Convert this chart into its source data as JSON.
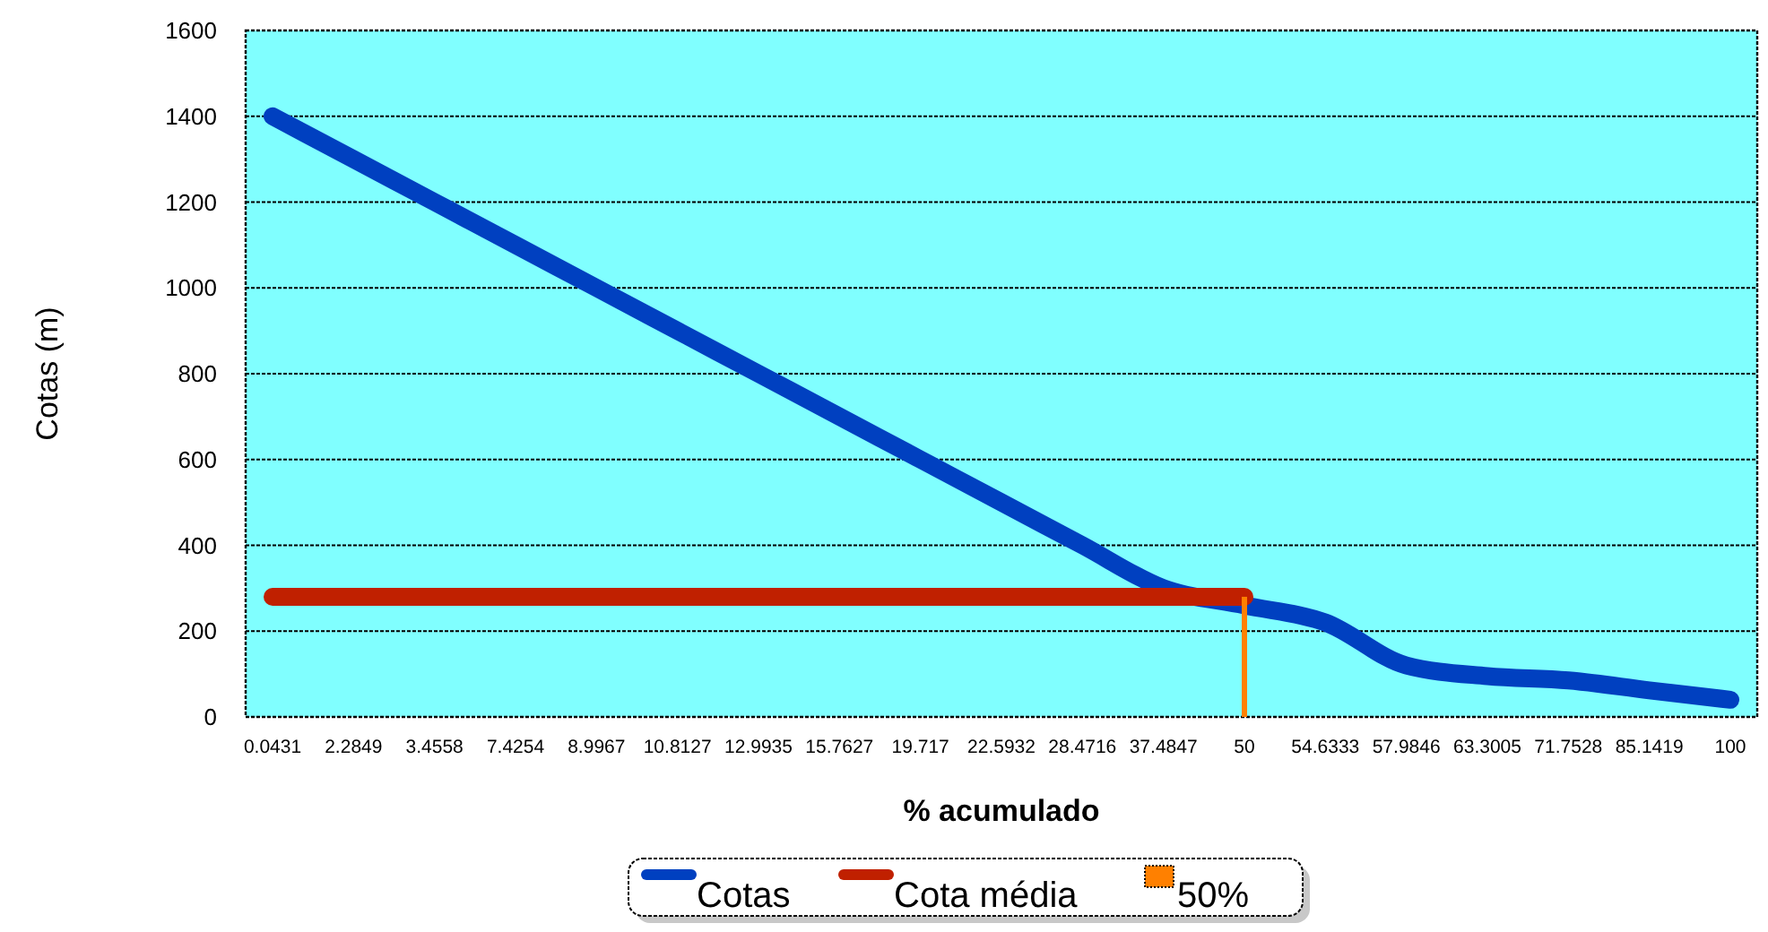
{
  "chart_data": {
    "type": "line",
    "xlabel": "% acumulado",
    "ylabel": "Cotas (m)",
    "categories": [
      "0.0431",
      "2.2849",
      "3.4558",
      "7.4254",
      "8.9967",
      "10.8127",
      "12.9935",
      "15.7627",
      "19.717",
      "22.5932",
      "28.4716",
      "37.4847",
      "50",
      "54.6333",
      "57.9846",
      "63.3005",
      "71.7528",
      "85.1419",
      "100"
    ],
    "series": [
      {
        "name": "Cotas",
        "color": "#0040c0",
        "values": [
          1400,
          1300,
          1200,
          1100,
          1000,
          900,
          800,
          700,
          600,
          500,
          400,
          300,
          260,
          220,
          120,
          95,
          85,
          62,
          40
        ]
      },
      {
        "name": "Cota média",
        "color": "#c02000",
        "values": [
          280,
          280,
          280,
          280,
          280,
          280,
          280,
          280,
          280,
          280,
          280,
          280,
          280,
          null,
          null,
          null,
          null,
          null,
          null
        ]
      },
      {
        "name": "50%",
        "type": "bar",
        "color": "#ff8000",
        "values": [
          null,
          null,
          null,
          null,
          null,
          null,
          null,
          null,
          null,
          null,
          null,
          null,
          280,
          null,
          null,
          null,
          null,
          null,
          null
        ]
      }
    ],
    "ylim": [
      0,
      1600
    ],
    "yticks": [
      0,
      200,
      400,
      600,
      800,
      1000,
      1200,
      1400,
      1600
    ],
    "grid": "y",
    "legend": "bottom",
    "marker": "none",
    "line_style": "solid"
  }
}
